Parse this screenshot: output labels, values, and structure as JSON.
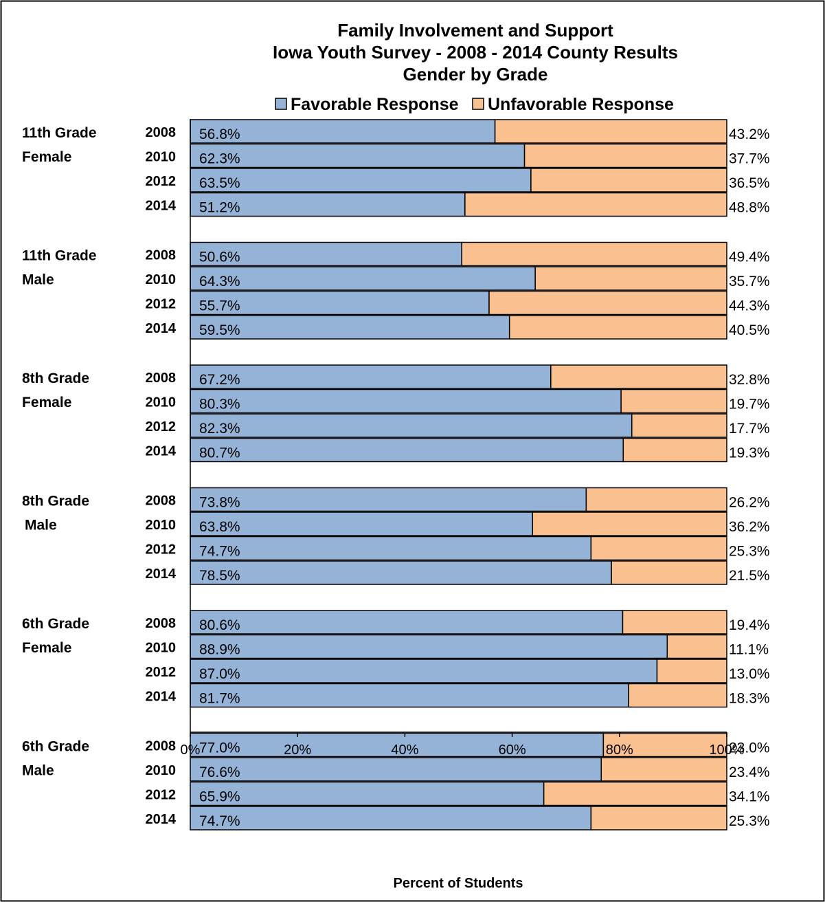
{
  "chart_data": {
    "type": "bar",
    "orientation": "horizontal",
    "stacked": true,
    "title": [
      "Family Involvement and Support",
      "Iowa Youth Survey - 2008 - 2014 County Results",
      "Gender by Grade"
    ],
    "xlabel": "Percent of Students",
    "xlim": [
      0,
      100
    ],
    "x_ticks": [
      "0%",
      "20%",
      "40%",
      "60%",
      "80%",
      "100%"
    ],
    "legend": {
      "placement": "top",
      "entries": [
        "Favorable Response",
        "Unfavorable Response"
      ]
    },
    "colors": {
      "favorable": "#95b3d7",
      "unfavorable": "#fac090",
      "outline": "#000000"
    },
    "series": [
      {
        "name": "Favorable Response"
      },
      {
        "name": "Unfavorable Response"
      }
    ],
    "groups": [
      {
        "label": [
          "11th Grade",
          "Female"
        ],
        "rows": [
          {
            "year": "2008",
            "favorable": 56.8,
            "unfavorable": 43.2,
            "fav_text": "56.8%",
            "unfav_text": "43.2%"
          },
          {
            "year": "2010",
            "favorable": 62.3,
            "unfavorable": 37.7,
            "fav_text": "62.3%",
            "unfav_text": "37.7%"
          },
          {
            "year": "2012",
            "favorable": 63.5,
            "unfavorable": 36.5,
            "fav_text": "63.5%",
            "unfav_text": "36.5%"
          },
          {
            "year": "2014",
            "favorable": 51.2,
            "unfavorable": 48.8,
            "fav_text": "51.2%",
            "unfav_text": "48.8%"
          }
        ]
      },
      {
        "label": [
          "11th Grade",
          "Male"
        ],
        "rows": [
          {
            "year": "2008",
            "favorable": 50.6,
            "unfavorable": 49.4,
            "fav_text": "50.6%",
            "unfav_text": "49.4%"
          },
          {
            "year": "2010",
            "favorable": 64.3,
            "unfavorable": 35.7,
            "fav_text": "64.3%",
            "unfav_text": "35.7%"
          },
          {
            "year": "2012",
            "favorable": 55.7,
            "unfavorable": 44.3,
            "fav_text": "55.7%",
            "unfav_text": "44.3%"
          },
          {
            "year": "2014",
            "favorable": 59.5,
            "unfavorable": 40.5,
            "fav_text": "59.5%",
            "unfav_text": "40.5%"
          }
        ]
      },
      {
        "label": [
          "8th Grade",
          "Female"
        ],
        "rows": [
          {
            "year": "2008",
            "favorable": 67.2,
            "unfavorable": 32.8,
            "fav_text": "67.2%",
            "unfav_text": "32.8%"
          },
          {
            "year": "2010",
            "favorable": 80.3,
            "unfavorable": 19.7,
            "fav_text": "80.3%",
            "unfav_text": "19.7%"
          },
          {
            "year": "2012",
            "favorable": 82.3,
            "unfavorable": 17.7,
            "fav_text": "82.3%",
            "unfav_text": "17.7%"
          },
          {
            "year": "2014",
            "favorable": 80.7,
            "unfavorable": 19.3,
            "fav_text": "80.7%",
            "unfav_text": "19.3%"
          }
        ]
      },
      {
        "label": [
          "8th Grade",
          "Male"
        ],
        "rows": [
          {
            "year": "2008",
            "favorable": 73.8,
            "unfavorable": 26.2,
            "fav_text": "73.8%",
            "unfav_text": "26.2%"
          },
          {
            "year": "2010",
            "favorable": 63.8,
            "unfavorable": 36.2,
            "fav_text": "63.8%",
            "unfav_text": "36.2%"
          },
          {
            "year": "2012",
            "favorable": 74.7,
            "unfavorable": 25.3,
            "fav_text": "74.7%",
            "unfav_text": "25.3%"
          },
          {
            "year": "2014",
            "favorable": 78.5,
            "unfavorable": 21.5,
            "fav_text": "78.5%",
            "unfav_text": "21.5%"
          }
        ]
      },
      {
        "label": [
          "6th Grade",
          "Female"
        ],
        "rows": [
          {
            "year": "2008",
            "favorable": 80.6,
            "unfavorable": 19.4,
            "fav_text": "80.6%",
            "unfav_text": "19.4%"
          },
          {
            "year": "2010",
            "favorable": 88.9,
            "unfavorable": 11.1,
            "fav_text": "88.9%",
            "unfav_text": "11.1%"
          },
          {
            "year": "2012",
            "favorable": 87.0,
            "unfavorable": 13.0,
            "fav_text": "87.0%",
            "unfav_text": "13.0%"
          },
          {
            "year": "2014",
            "favorable": 81.7,
            "unfavorable": 18.3,
            "fav_text": "81.7%",
            "unfav_text": "18.3%"
          }
        ]
      },
      {
        "label": [
          "6th Grade",
          "Male"
        ],
        "rows": [
          {
            "year": "2008",
            "favorable": 77.0,
            "unfavorable": 23.0,
            "fav_text": "77.0%",
            "unfav_text": "23.0%"
          },
          {
            "year": "2010",
            "favorable": 76.6,
            "unfavorable": 23.4,
            "fav_text": "76.6%",
            "unfav_text": "23.4%"
          },
          {
            "year": "2012",
            "favorable": 65.9,
            "unfavorable": 34.1,
            "fav_text": "65.9%",
            "unfav_text": "34.1%"
          },
          {
            "year": "2014",
            "favorable": 74.7,
            "unfavorable": 25.3,
            "fav_text": "74.7%",
            "unfav_text": "25.3%"
          }
        ]
      }
    ]
  }
}
